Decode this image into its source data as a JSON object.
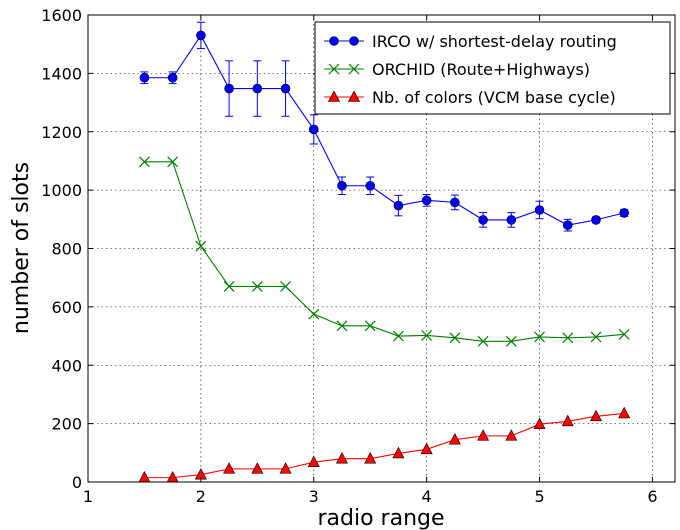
{
  "chart_data": {
    "type": "line",
    "xlabel": "radio range",
    "ylabel": "number of slots",
    "xlim": [
      1,
      6.2
    ],
    "ylim": [
      0,
      1600
    ],
    "xticks": [
      "1",
      "2",
      "3",
      "4",
      "5",
      "6"
    ],
    "yticks": [
      "0",
      "200",
      "400",
      "600",
      "800",
      "1000",
      "1200",
      "1400",
      "1600"
    ],
    "grid": true,
    "legend_position": "top-right",
    "x": [
      1.5,
      1.75,
      2.0,
      2.25,
      2.5,
      2.75,
      3.0,
      3.25,
      3.5,
      3.75,
      4.0,
      4.25,
      4.5,
      4.75,
      5.0,
      5.25,
      5.5,
      5.75
    ],
    "series": [
      {
        "name": "IRCO w/ shortest-delay routing",
        "color": "#0000ff",
        "marker": "circle",
        "values": [
          1385,
          1385,
          1530,
          1348,
          1348,
          1348,
          1208,
          1015,
          1015,
          947,
          965,
          958,
          898,
          898,
          932,
          880,
          898,
          922
        ],
        "errors": [
          20,
          20,
          45,
          95,
          95,
          95,
          50,
          30,
          30,
          35,
          20,
          25,
          25,
          25,
          30,
          20,
          10,
          12
        ]
      },
      {
        "name": "ORCHID (Route+Highways)",
        "color": "#008000",
        "marker": "x",
        "values": [
          1097,
          1097,
          808,
          670,
          670,
          670,
          575,
          535,
          535,
          500,
          502,
          494,
          482,
          482,
          497,
          494,
          497,
          506
        ]
      },
      {
        "name": "Nb. of colors (VCM base cycle)",
        "color": "#ff0000",
        "marker": "triangle",
        "values": [
          15,
          15,
          25,
          45,
          45,
          45,
          68,
          80,
          80,
          98,
          112,
          145,
          158,
          158,
          198,
          208,
          225,
          235
        ]
      }
    ]
  }
}
